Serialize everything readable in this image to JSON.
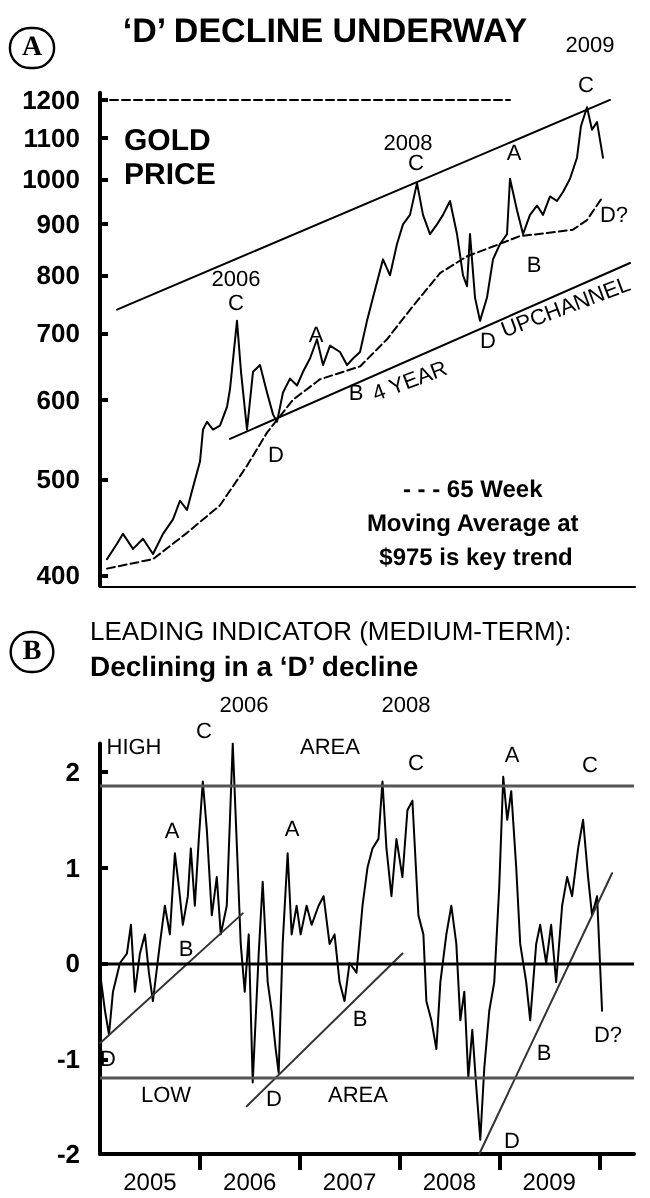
{
  "chart_data": [
    {
      "type": "line",
      "title": "‘D’ DECLINE UNDERWAY",
      "log": "y",
      "tick_labels": "y",
      "xlim": [
        2005,
        2010.35
      ],
      "ylim": [
        390,
        1220
      ],
      "yticks": [
        400,
        500,
        600,
        700,
        800,
        900,
        1000,
        1100,
        1200
      ],
      "series": [
        {
          "color": "#000000",
          "x": [
            2005.07,
            2005.17,
            2005.23,
            2005.33,
            2005.43,
            2005.53,
            2005.63,
            2005.73,
            2005.8,
            2005.87,
            2005.93,
            2006.0,
            2006.03,
            2006.07,
            2006.13,
            2006.2,
            2006.27,
            2006.3,
            2006.37,
            2006.41,
            2006.47,
            2006.53,
            2006.6,
            2006.67,
            2006.73,
            2006.77,
            2006.83,
            2006.9,
            2006.97,
            2007.03,
            2007.1,
            2007.17,
            2007.23,
            2007.3,
            2007.4,
            2007.47,
            2007.53,
            2007.6,
            2007.67,
            2007.73,
            2007.83,
            2007.9,
            2007.97,
            2008.03,
            2008.1,
            2008.17,
            2008.23,
            2008.3,
            2008.37,
            2008.43,
            2008.5,
            2008.57,
            2008.63,
            2008.67,
            2008.7,
            2008.75,
            2008.8,
            2008.87,
            2008.93,
            2009.0,
            2009.07,
            2009.1,
            2009.17,
            2009.23,
            2009.3,
            2009.37,
            2009.43,
            2009.5,
            2009.57,
            2009.63,
            2009.7,
            2009.77,
            2009.81,
            2009.87,
            2009.92,
            2009.97,
            2010.03
          ],
          "values": [
            415,
            430,
            440,
            425,
            435,
            420,
            440,
            455,
            475,
            465,
            490,
            520,
            560,
            570,
            560,
            565,
            590,
            615,
            720,
            640,
            560,
            640,
            650,
            610,
            580,
            570,
            610,
            630,
            620,
            640,
            660,
            690,
            650,
            680,
            670,
            650,
            660,
            670,
            720,
            760,
            830,
            800,
            860,
            900,
            920,
            990,
            920,
            880,
            900,
            920,
            950,
            880,
            800,
            780,
            880,
            760,
            720,
            760,
            830,
            860,
            880,
            1000,
            930,
            880,
            920,
            940,
            920,
            960,
            950,
            970,
            1000,
            1050,
            1130,
            1180,
            1120,
            1140,
            1050
          ]
        },
        {
          "color": "#000000",
          "line_style": "dashed",
          "x": [
            2005.07,
            2005.53,
            2005.87,
            2006.2,
            2006.47,
            2006.67,
            2006.93,
            2007.2,
            2007.6,
            2007.87,
            2008.13,
            2008.4,
            2008.67,
            2008.93,
            2009.2,
            2009.47,
            2009.73,
            2009.87,
            2010.03
          ],
          "values": [
            406,
            415,
            441,
            470,
            515,
            556,
            600,
            629,
            648,
            690,
            745,
            804,
            836,
            855,
            876,
            882,
            889,
            909,
            960
          ]
        },
        {
          "color": "#000000",
          "x": [
            2005.17,
            2010.1
          ],
          "values": [
            739,
            1200
          ]
        },
        {
          "color": "#000000",
          "x": [
            2006.3,
            2010.3
          ],
          "values": [
            548,
            823
          ]
        },
        {
          "color": "#000000",
          "line_style": "dashed",
          "x": [
            2005.1,
            2009.1
          ],
          "values": [
            1200,
            1200
          ]
        }
      ],
      "annotations": [
        "GOLD PRICE",
        "- - - 65 Week Moving Average at $975 is key trend",
        "A",
        "2006",
        "C",
        "A",
        "D",
        "B",
        "4 YEAR",
        "2008",
        "C",
        "D",
        "A",
        "B",
        "UPCHANNEL",
        "2009",
        "C",
        "D?"
      ]
    },
    {
      "type": "line",
      "title": "LEADING INDICATOR (MEDIUM-TERM):",
      "subtitle": "Declining in a ‘D’ decline",
      "xlim": [
        2005,
        2010.35
      ],
      "ylim": [
        -2,
        2.3
      ],
      "yticks": [
        -2,
        -1,
        0,
        1,
        2
      ],
      "xticks": [
        {
          "value": 2005.5,
          "label": "2005"
        },
        {
          "value": 2006,
          "label": null
        },
        {
          "value": 2006.5,
          "label": "2006"
        },
        {
          "value": 2007,
          "label": null
        },
        {
          "value": 2007.5,
          "label": "2007"
        },
        {
          "value": 2008,
          "label": null
        },
        {
          "value": 2008.5,
          "label": "2008"
        },
        {
          "value": 2009,
          "label": null
        },
        {
          "value": 2009.5,
          "label": "2009"
        },
        {
          "value": 2010,
          "label": null
        }
      ],
      "series": [
        {
          "color": "#000000",
          "x": [
            2005.0,
            2005.05,
            2005.09,
            2005.13,
            2005.2,
            2005.27,
            2005.31,
            2005.35,
            2005.4,
            2005.45,
            2005.49,
            2005.53,
            2005.6,
            2005.65,
            2005.7,
            2005.75,
            2005.79,
            2005.83,
            2005.88,
            2005.91,
            2005.95,
            2005.99,
            2006.03,
            2006.07,
            2006.12,
            2006.17,
            2006.21,
            2006.27,
            2006.33,
            2006.38,
            2006.41,
            2006.45,
            2006.49,
            2006.53,
            2006.59,
            2006.63,
            2006.68,
            2006.72,
            2006.76,
            2006.79,
            2006.83,
            2006.88,
            2006.92,
            2006.97,
            2007.01,
            2007.07,
            2007.12,
            2007.19,
            2007.24,
            2007.3,
            2007.35,
            2007.4,
            2007.45,
            2007.5,
            2007.57,
            2007.63,
            2007.68,
            2007.73,
            2007.79,
            2007.83,
            2007.87,
            2007.92,
            2007.97,
            2008.03,
            2008.08,
            2008.13,
            2008.19,
            2008.24,
            2008.27,
            2008.32,
            2008.37,
            2008.41,
            2008.47,
            2008.52,
            2008.57,
            2008.61,
            2008.65,
            2008.69,
            2008.73,
            2008.77,
            2008.81,
            2008.85,
            2008.9,
            2008.95,
            2009.0,
            2009.04,
            2009.08,
            2009.12,
            2009.17,
            2009.21,
            2009.27,
            2009.31,
            2009.37,
            2009.41,
            2009.47,
            2009.52,
            2009.57,
            2009.63,
            2009.68,
            2009.73,
            2009.79,
            2009.84,
            2009.89,
            2009.93,
            2009.98,
            2010.03
          ],
          "values": [
            -0.1,
            -0.5,
            -0.75,
            -0.3,
            0.0,
            0.1,
            0.4,
            -0.3,
            0.1,
            0.3,
            -0.1,
            -0.4,
            0.2,
            0.6,
            0.3,
            1.15,
            0.8,
            0.4,
            0.7,
            1.2,
            0.6,
            1.3,
            1.9,
            1.4,
            0.5,
            0.9,
            0.3,
            0.6,
            2.3,
            1.0,
            0.2,
            -0.3,
            0.3,
            -1.25,
            0.1,
            0.85,
            -0.2,
            -0.5,
            -0.9,
            -1.15,
            0.2,
            1.15,
            0.3,
            0.6,
            0.3,
            0.6,
            0.4,
            0.6,
            0.7,
            0.2,
            0.3,
            -0.2,
            -0.4,
            0.0,
            -0.1,
            0.6,
            1.0,
            1.2,
            1.3,
            1.9,
            1.2,
            0.7,
            1.3,
            0.9,
            1.6,
            1.7,
            0.5,
            0.3,
            -0.4,
            -0.6,
            -0.9,
            -0.2,
            0.3,
            0.6,
            0.2,
            -0.6,
            -0.3,
            -1.2,
            -0.7,
            -1.3,
            -1.85,
            -1.1,
            -0.5,
            -0.2,
            0.8,
            1.95,
            1.5,
            1.8,
            1.0,
            0.2,
            -0.2,
            -0.6,
            0.2,
            0.4,
            0.0,
            0.4,
            -0.2,
            0.6,
            0.9,
            0.7,
            1.2,
            1.5,
            0.9,
            0.5,
            0.7,
            -0.5
          ]
        },
        {
          "color": "#333333",
          "x": [
            2005.0,
            2006.43
          ],
          "values": [
            -0.84,
            0.52
          ]
        },
        {
          "color": "#333333",
          "x": [
            2006.47,
            2008.03
          ],
          "values": [
            -1.5,
            0.1
          ]
        },
        {
          "color": "#333333",
          "x": [
            2008.8,
            2010.13
          ],
          "values": [
            -2.0,
            0.94
          ]
        }
      ],
      "ref_lines": [
        {
          "axis": "y",
          "value": 0,
          "color": "#000000"
        },
        {
          "axis": "y",
          "value": 1.85,
          "color": "#555555"
        },
        {
          "axis": "y",
          "value": -1.2,
          "color": "#555555"
        }
      ],
      "annotations": [
        "B",
        "2006",
        "2008",
        "HIGH",
        "C",
        "AREA",
        "C",
        "A",
        "C",
        "A",
        "A",
        "B",
        "B",
        "B",
        "D",
        "D",
        "D",
        "D?",
        "LOW",
        "AREA"
      ]
    }
  ]
}
